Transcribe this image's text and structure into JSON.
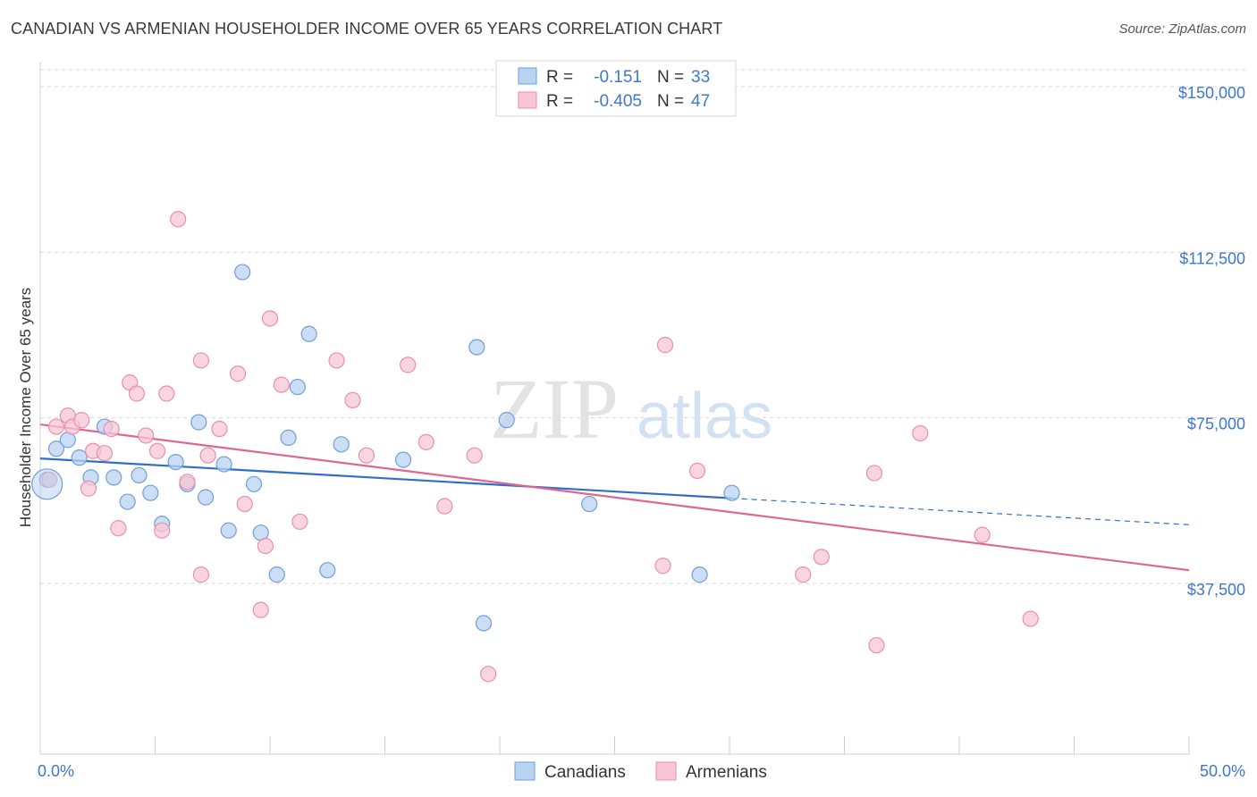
{
  "chart_data": {
    "type": "scatter",
    "title": "CANADIAN VS ARMENIAN HOUSEHOLDER INCOME OVER 65 YEARS CORRELATION CHART",
    "source": "Source: ZipAtlas.com",
    "xlabel": "",
    "ylabel": "Householder Income Over 65 years",
    "xlim": [
      0,
      50
    ],
    "ylim": [
      0,
      160000
    ],
    "x_ticks": [
      "0.0%",
      "50.0%"
    ],
    "y_ticks": [
      {
        "value": 150000,
        "label": "$150,000"
      },
      {
        "value": 112500,
        "label": "$112,500"
      },
      {
        "value": 75000,
        "label": "$75,000"
      },
      {
        "value": 37500,
        "label": "$37,500"
      }
    ],
    "grid": true,
    "legend": {
      "position": "top-center",
      "rows": [
        {
          "r_label": "R =",
          "r_value": "-0.151",
          "n_label": "N =",
          "n_value": "33"
        },
        {
          "r_label": "R =",
          "r_value": "-0.405",
          "n_label": "N =",
          "n_value": "47"
        }
      ]
    },
    "colors": {
      "canadians_fill": "#b9d3f3",
      "canadians_stroke": "#6f9fd8",
      "canadians_line": "#2f6fc9",
      "armenians_fill": "#f8c6d5",
      "armenians_stroke": "#e890ac",
      "armenians_line": "#e0668f"
    },
    "series": [
      {
        "name": "Canadians",
        "points": [
          [
            0.3,
            61000
          ],
          [
            0.7,
            68000
          ],
          [
            1.2,
            70000
          ],
          [
            1.7,
            66000
          ],
          [
            2.2,
            61500
          ],
          [
            2.8,
            73000
          ],
          [
            3.2,
            61500
          ],
          [
            3.8,
            56000
          ],
          [
            4.3,
            62000
          ],
          [
            4.8,
            58000
          ],
          [
            5.3,
            51000
          ],
          [
            5.9,
            65000
          ],
          [
            6.4,
            60000
          ],
          [
            6.9,
            74000
          ],
          [
            7.2,
            57000
          ],
          [
            8.0,
            64500
          ],
          [
            8.2,
            49500
          ],
          [
            8.8,
            108000
          ],
          [
            9.3,
            60000
          ],
          [
            9.6,
            49000
          ],
          [
            10.3,
            39500
          ],
          [
            10.8,
            70500
          ],
          [
            11.2,
            82000
          ],
          [
            11.7,
            94000
          ],
          [
            12.5,
            40500
          ],
          [
            13.1,
            69000
          ],
          [
            15.8,
            65500
          ],
          [
            19.0,
            91000
          ],
          [
            19.3,
            28500
          ],
          [
            20.3,
            74500
          ],
          [
            23.9,
            55500
          ],
          [
            28.7,
            39500
          ],
          [
            30.1,
            58000
          ]
        ],
        "trend": {
          "x": [
            0,
            30.1
          ],
          "y": [
            65800,
            56800
          ],
          "extension": {
            "x": [
              30.1,
              50
            ],
            "y": [
              56800,
              50800
            ]
          }
        }
      },
      {
        "name": "Armenians",
        "points": [
          [
            0.4,
            61000
          ],
          [
            0.7,
            73000
          ],
          [
            1.2,
            75500
          ],
          [
            1.4,
            73000
          ],
          [
            1.8,
            74500
          ],
          [
            2.1,
            59000
          ],
          [
            2.3,
            67500
          ],
          [
            2.8,
            67000
          ],
          [
            3.1,
            72500
          ],
          [
            3.4,
            50000
          ],
          [
            3.9,
            83000
          ],
          [
            4.2,
            80500
          ],
          [
            4.6,
            71000
          ],
          [
            5.1,
            67500
          ],
          [
            5.3,
            49500
          ],
          [
            5.5,
            80500
          ],
          [
            6.0,
            120000
          ],
          [
            6.4,
            60500
          ],
          [
            7.0,
            39500
          ],
          [
            7.0,
            88000
          ],
          [
            7.3,
            66500
          ],
          [
            7.8,
            72500
          ],
          [
            8.6,
            85000
          ],
          [
            8.9,
            55500
          ],
          [
            9.6,
            31500
          ],
          [
            9.8,
            46000
          ],
          [
            10.0,
            97500
          ],
          [
            10.5,
            82500
          ],
          [
            11.3,
            51500
          ],
          [
            12.9,
            88000
          ],
          [
            13.6,
            79000
          ],
          [
            14.2,
            66500
          ],
          [
            16.0,
            87000
          ],
          [
            16.8,
            69500
          ],
          [
            17.6,
            55000
          ],
          [
            18.9,
            66500
          ],
          [
            19.5,
            17000
          ],
          [
            27.1,
            41500
          ],
          [
            27.2,
            91500
          ],
          [
            28.6,
            63000
          ],
          [
            33.2,
            39500
          ],
          [
            34.0,
            43500
          ],
          [
            36.4,
            23500
          ],
          [
            36.3,
            62500
          ],
          [
            38.3,
            71500
          ],
          [
            41.0,
            48500
          ],
          [
            43.1,
            29500
          ]
        ],
        "trend": {
          "x": [
            0,
            50
          ],
          "y": [
            73500,
            40500
          ]
        }
      }
    ],
    "bottom_legend": [
      "Canadians",
      "Armenians"
    ],
    "watermark": {
      "zip": "ZIP",
      "atlas": "atlas"
    }
  }
}
